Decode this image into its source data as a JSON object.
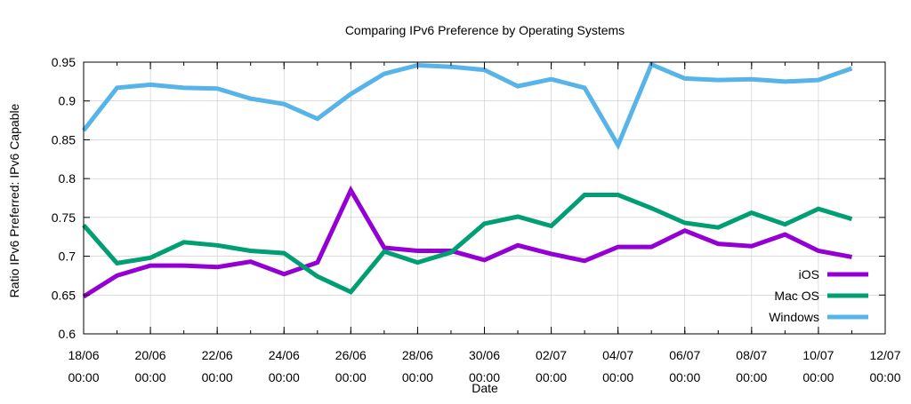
{
  "chart_data": {
    "type": "line",
    "title": "Comparing IPv6 Preference by Operating Systems",
    "xlabel": "Date",
    "ylabel": "Ratio IPv6 Preferred: IPv6 Capable",
    "ylim": [
      0.6,
      0.95
    ],
    "yticks": [
      0.6,
      0.65,
      0.7,
      0.75,
      0.8,
      0.85,
      0.9,
      0.95
    ],
    "ytick_labels": [
      "0.6",
      "0.65",
      "0.7",
      "0.75",
      "0.8",
      "0.85",
      "0.9",
      "0.95"
    ],
    "xlim": [
      "2017-06-18",
      "2017-07-12"
    ],
    "xticks": [
      {
        "date": "2017-06-18",
        "line1": "18/06",
        "line2": "00:00"
      },
      {
        "date": "2017-06-20",
        "line1": "20/06",
        "line2": "00:00"
      },
      {
        "date": "2017-06-22",
        "line1": "22/06",
        "line2": "00:00"
      },
      {
        "date": "2017-06-24",
        "line1": "24/06",
        "line2": "00:00"
      },
      {
        "date": "2017-06-26",
        "line1": "26/06",
        "line2": "00:00"
      },
      {
        "date": "2017-06-28",
        "line1": "28/06",
        "line2": "00:00"
      },
      {
        "date": "2017-06-30",
        "line1": "30/06",
        "line2": "00:00"
      },
      {
        "date": "2017-07-02",
        "line1": "02/07",
        "line2": "00:00"
      },
      {
        "date": "2017-07-04",
        "line1": "04/07",
        "line2": "00:00"
      },
      {
        "date": "2017-07-06",
        "line1": "06/07",
        "line2": "00:00"
      },
      {
        "date": "2017-07-08",
        "line1": "08/07",
        "line2": "00:00"
      },
      {
        "date": "2017-07-10",
        "line1": "10/07",
        "line2": "00:00"
      },
      {
        "date": "2017-07-12",
        "line1": "12/07",
        "line2": "00:00"
      }
    ],
    "grid": true,
    "legend_position": "bottom-right",
    "x": [
      "2017-06-18",
      "2017-06-19",
      "2017-06-20",
      "2017-06-21",
      "2017-06-22",
      "2017-06-23",
      "2017-06-24",
      "2017-06-25",
      "2017-06-26",
      "2017-06-27",
      "2017-06-28",
      "2017-06-29",
      "2017-06-30",
      "2017-07-01",
      "2017-07-02",
      "2017-07-03",
      "2017-07-04",
      "2017-07-05",
      "2017-07-06",
      "2017-07-07",
      "2017-07-08",
      "2017-07-09",
      "2017-07-10",
      "2017-07-11"
    ],
    "series": [
      {
        "name": "iOS",
        "color": "#9400d3",
        "values": [
          0.648,
          0.675,
          0.688,
          0.688,
          0.686,
          0.693,
          0.677,
          0.692,
          0.785,
          0.711,
          0.707,
          0.707,
          0.695,
          0.714,
          0.703,
          0.694,
          0.712,
          0.712,
          0.733,
          0.716,
          0.713,
          0.728,
          0.707,
          0.699
        ]
      },
      {
        "name": "Mac OS",
        "color": "#009e73",
        "values": [
          0.74,
          0.691,
          0.698,
          0.718,
          0.714,
          0.707,
          0.704,
          0.674,
          0.654,
          0.706,
          0.692,
          0.705,
          0.742,
          0.751,
          0.739,
          0.779,
          0.779,
          0.762,
          0.743,
          0.737,
          0.756,
          0.741,
          0.761,
          0.748
        ]
      },
      {
        "name": "Windows",
        "color": "#56b4e9",
        "values": [
          0.862,
          0.917,
          0.921,
          0.917,
          0.916,
          0.903,
          0.896,
          0.877,
          0.909,
          0.935,
          0.946,
          0.944,
          0.94,
          0.919,
          0.928,
          0.917,
          0.843,
          0.947,
          0.929,
          0.927,
          0.928,
          0.925,
          0.927,
          0.942
        ]
      }
    ]
  }
}
